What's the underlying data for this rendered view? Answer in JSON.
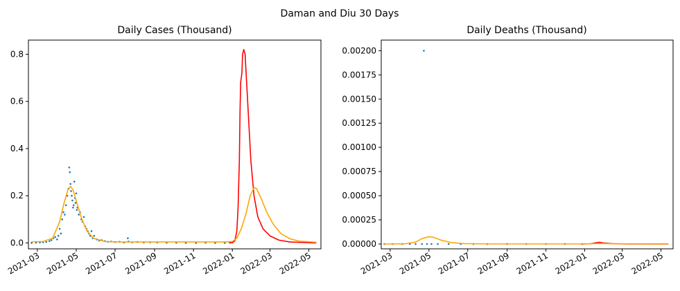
{
  "figure": {
    "suptitle": "Daman and Diu 30 Days"
  },
  "colors": {
    "observed": "#1f77b4",
    "forecast_red": "#ff0000",
    "forecast_orange": "#ffa500"
  },
  "chart_data": [
    {
      "type": "line",
      "title": "Daily Cases (Thousand)",
      "xlabel": "",
      "ylabel": "",
      "x_axis": "date",
      "xlim": [
        "2021-02-15",
        "2022-05-20"
      ],
      "ylim": [
        -0.025,
        0.86
      ],
      "xticks": [
        "2021-03",
        "2021-05",
        "2021-07",
        "2021-09",
        "2021-11",
        "2022-01",
        "2022-03",
        "2022-05"
      ],
      "xtick_dates": [
        "2021-03-01",
        "2021-05-01",
        "2021-07-01",
        "2021-09-01",
        "2021-11-01",
        "2022-01-01",
        "2022-03-01",
        "2022-05-01"
      ],
      "yticks": [
        0.0,
        0.2,
        0.4,
        0.6,
        0.8
      ],
      "ytick_labels": [
        "0.0",
        "0.2",
        "0.4",
        "0.6",
        "0.8"
      ],
      "series": [
        {
          "style": "scatter",
          "color": "#1f77b4",
          "points": [
            [
              "2021-02-20",
              0.0
            ],
            [
              "2021-02-27",
              0.001
            ],
            [
              "2021-03-05",
              0.002
            ],
            [
              "2021-03-10",
              0.003
            ],
            [
              "2021-03-15",
              0.004
            ],
            [
              "2021-03-20",
              0.008
            ],
            [
              "2021-03-23",
              0.012
            ],
            [
              "2021-03-26",
              0.02
            ],
            [
              "2021-03-29",
              0.025
            ],
            [
              "2021-04-01",
              0.015
            ],
            [
              "2021-04-03",
              0.03
            ],
            [
              "2021-04-05",
              0.06
            ],
            [
              "2021-04-07",
              0.04
            ],
            [
              "2021-04-09",
              0.1
            ],
            [
              "2021-04-11",
              0.13
            ],
            [
              "2021-04-13",
              0.12
            ],
            [
              "2021-04-15",
              0.16
            ],
            [
              "2021-04-17",
              0.2
            ],
            [
              "2021-04-19",
              0.23
            ],
            [
              "2021-04-20",
              0.32
            ],
            [
              "2021-04-21",
              0.3
            ],
            [
              "2021-04-22",
              0.25
            ],
            [
              "2021-04-23",
              0.22
            ],
            [
              "2021-04-24",
              0.2
            ],
            [
              "2021-04-25",
              0.18
            ],
            [
              "2021-04-26",
              0.15
            ],
            [
              "2021-04-27",
              0.16
            ],
            [
              "2021-04-28",
              0.26
            ],
            [
              "2021-04-29",
              0.19
            ],
            [
              "2021-04-30",
              0.17
            ],
            [
              "2021-05-01",
              0.21
            ],
            [
              "2021-05-02",
              0.14
            ],
            [
              "2021-05-03",
              0.15
            ],
            [
              "2021-05-05",
              0.12
            ],
            [
              "2021-05-07",
              0.13
            ],
            [
              "2021-05-09",
              0.1
            ],
            [
              "2021-05-11",
              0.09
            ],
            [
              "2021-05-13",
              0.11
            ],
            [
              "2021-05-15",
              0.07
            ],
            [
              "2021-05-17",
              0.06
            ],
            [
              "2021-05-19",
              0.05
            ],
            [
              "2021-05-21",
              0.04
            ],
            [
              "2021-05-23",
              0.03
            ],
            [
              "2021-05-25",
              0.05
            ],
            [
              "2021-05-27",
              0.02
            ],
            [
              "2021-05-29",
              0.03
            ],
            [
              "2021-06-02",
              0.015
            ],
            [
              "2021-06-06",
              0.01
            ],
            [
              "2021-06-10",
              0.012
            ],
            [
              "2021-06-15",
              0.008
            ],
            [
              "2021-06-20",
              0.005
            ],
            [
              "2021-06-25",
              0.006
            ],
            [
              "2021-07-01",
              0.004
            ],
            [
              "2021-07-08",
              0.005
            ],
            [
              "2021-07-15",
              0.002
            ],
            [
              "2021-07-21",
              0.02
            ],
            [
              "2021-07-22",
              0.006
            ],
            [
              "2021-07-28",
              0.003
            ],
            [
              "2021-08-05",
              0.004
            ],
            [
              "2021-08-15",
              0.002
            ],
            [
              "2021-08-25",
              0.003
            ],
            [
              "2021-09-05",
              0.002
            ],
            [
              "2021-09-20",
              0.001
            ],
            [
              "2021-10-05",
              0.001
            ],
            [
              "2021-10-20",
              0.0
            ],
            [
              "2021-11-05",
              0.0
            ],
            [
              "2021-11-20",
              0.001
            ],
            [
              "2021-12-05",
              0.0
            ],
            [
              "2021-12-20",
              0.0
            ],
            [
              "2021-12-28",
              0.001
            ]
          ]
        },
        {
          "style": "line",
          "color": "#ff0000",
          "points": [
            [
              "2021-12-28",
              0.0
            ],
            [
              "2022-01-02",
              0.002
            ],
            [
              "2022-01-05",
              0.01
            ],
            [
              "2022-01-08",
              0.05
            ],
            [
              "2022-01-10",
              0.15
            ],
            [
              "2022-01-12",
              0.35
            ],
            [
              "2022-01-13",
              0.55
            ],
            [
              "2022-01-14",
              0.68
            ],
            [
              "2022-01-16",
              0.72
            ],
            [
              "2022-01-17",
              0.8
            ],
            [
              "2022-01-19",
              0.82
            ],
            [
              "2022-01-21",
              0.8
            ],
            [
              "2022-01-23",
              0.7
            ],
            [
              "2022-01-26",
              0.55
            ],
            [
              "2022-01-30",
              0.35
            ],
            [
              "2022-02-04",
              0.2
            ],
            [
              "2022-02-10",
              0.11
            ],
            [
              "2022-02-18",
              0.06
            ],
            [
              "2022-03-01",
              0.03
            ],
            [
              "2022-03-15",
              0.012
            ],
            [
              "2022-04-01",
              0.004
            ],
            [
              "2022-05-12",
              0.0
            ]
          ]
        },
        {
          "style": "line",
          "color": "#ffa500",
          "points": [
            [
              "2021-02-20",
              0.005
            ],
            [
              "2021-03-10",
              0.006
            ],
            [
              "2021-03-25",
              0.02
            ],
            [
              "2021-04-05",
              0.09
            ],
            [
              "2021-04-12",
              0.17
            ],
            [
              "2021-04-18",
              0.225
            ],
            [
              "2021-04-22",
              0.24
            ],
            [
              "2021-04-26",
              0.225
            ],
            [
              "2021-05-02",
              0.17
            ],
            [
              "2021-05-10",
              0.1
            ],
            [
              "2021-05-18",
              0.05
            ],
            [
              "2021-05-28",
              0.02
            ],
            [
              "2021-06-15",
              0.006
            ],
            [
              "2021-07-10",
              0.004
            ],
            [
              "2021-12-20",
              0.004
            ],
            [
              "2022-01-01",
              0.006
            ],
            [
              "2022-01-08",
              0.02
            ],
            [
              "2022-01-15",
              0.06
            ],
            [
              "2022-01-22",
              0.12
            ],
            [
              "2022-01-29",
              0.2
            ],
            [
              "2022-02-04",
              0.235
            ],
            [
              "2022-02-08",
              0.23
            ],
            [
              "2022-02-15",
              0.19
            ],
            [
              "2022-02-24",
              0.13
            ],
            [
              "2022-03-06",
              0.08
            ],
            [
              "2022-03-18",
              0.04
            ],
            [
              "2022-04-01",
              0.018
            ],
            [
              "2022-04-15",
              0.008
            ],
            [
              "2022-05-12",
              0.003
            ]
          ]
        }
      ]
    },
    {
      "type": "line",
      "title": "Daily Deaths (Thousand)",
      "xlabel": "",
      "ylabel": "",
      "x_axis": "date",
      "xlim": [
        "2021-02-15",
        "2022-05-20"
      ],
      "ylim": [
        -5e-05,
        0.00211
      ],
      "xticks": [
        "2021-03",
        "2021-05",
        "2021-07",
        "2021-09",
        "2021-11",
        "2022-01",
        "2022-03",
        "2022-05"
      ],
      "xtick_dates": [
        "2021-03-01",
        "2021-05-01",
        "2021-07-01",
        "2021-09-01",
        "2021-11-01",
        "2022-01-01",
        "2022-03-01",
        "2022-05-01"
      ],
      "yticks": [
        0.0,
        0.00025,
        0.0005,
        0.00075,
        0.001,
        0.00125,
        0.0015,
        0.00175,
        0.002
      ],
      "ytick_labels": [
        "0.00000",
        "0.00025",
        "0.00050",
        "0.00075",
        "0.00100",
        "0.00125",
        "0.00150",
        "0.00175",
        "0.00200"
      ],
      "series": [
        {
          "style": "scatter",
          "color": "#1f77b4",
          "points": [
            [
              "2021-02-20",
              0.0
            ],
            [
              "2021-03-05",
              0.0
            ],
            [
              "2021-03-20",
              0.0
            ],
            [
              "2021-04-01",
              0.0
            ],
            [
              "2021-04-10",
              0.0
            ],
            [
              "2021-04-20",
              0.0
            ],
            [
              "2021-04-23",
              0.002
            ],
            [
              "2021-04-28",
              0.0
            ],
            [
              "2021-05-05",
              0.0
            ],
            [
              "2021-05-15",
              0.0
            ],
            [
              "2021-06-01",
              0.0
            ],
            [
              "2021-06-20",
              0.0
            ],
            [
              "2021-07-10",
              0.0
            ],
            [
              "2021-08-01",
              0.0
            ],
            [
              "2021-09-01",
              0.0
            ],
            [
              "2021-10-01",
              0.0
            ],
            [
              "2021-11-01",
              0.0
            ],
            [
              "2021-12-01",
              0.0
            ],
            [
              "2021-12-28",
              0.0
            ]
          ]
        },
        {
          "style": "line",
          "color": "#ff0000",
          "points": [
            [
              "2021-12-28",
              0.0
            ],
            [
              "2022-01-10",
              2e-06
            ],
            [
              "2022-01-18",
              1.2e-05
            ],
            [
              "2022-01-24",
              1.8e-05
            ],
            [
              "2022-02-01",
              1e-05
            ],
            [
              "2022-02-15",
              3e-06
            ],
            [
              "2022-03-15",
              0.0
            ],
            [
              "2022-05-12",
              0.0
            ]
          ]
        },
        {
          "style": "line",
          "color": "#ffa500",
          "points": [
            [
              "2021-02-20",
              0.0
            ],
            [
              "2021-03-25",
              2e-06
            ],
            [
              "2021-04-10",
              2e-05
            ],
            [
              "2021-04-20",
              5.5e-05
            ],
            [
              "2021-04-30",
              7.5e-05
            ],
            [
              "2021-05-08",
              7e-05
            ],
            [
              "2021-05-20",
              4e-05
            ],
            [
              "2021-06-05",
              1.5e-05
            ],
            [
              "2021-06-25",
              4e-06
            ],
            [
              "2021-08-01",
              1e-06
            ],
            [
              "2022-01-01",
              1e-06
            ],
            [
              "2022-01-25",
              6e-06
            ],
            [
              "2022-02-15",
              3e-06
            ],
            [
              "2022-05-12",
              0.0
            ]
          ]
        }
      ]
    }
  ]
}
